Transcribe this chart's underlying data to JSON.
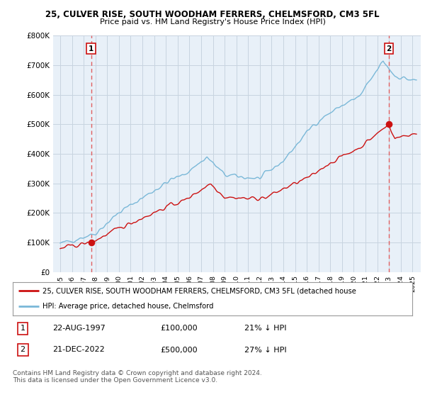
{
  "title1": "25, CULVER RISE, SOUTH WOODHAM FERRERS, CHELMSFORD, CM3 5FL",
  "title2": "Price paid vs. HM Land Registry's House Price Index (HPI)",
  "ylabel_ticks": [
    "£0",
    "£100K",
    "£200K",
    "£300K",
    "£400K",
    "£500K",
    "£600K",
    "£700K",
    "£800K"
  ],
  "ylim": [
    0,
    800000
  ],
  "purchase1_date": 1997.64,
  "purchase1_price": 100000,
  "purchase2_date": 2022.97,
  "purchase2_price": 500000,
  "legend_line1": "25, CULVER RISE, SOUTH WOODHAM FERRERS, CHELMSFORD, CM3 5FL (detached house",
  "legend_line2": "HPI: Average price, detached house, Chelmsford",
  "table_row1": [
    "1",
    "22-AUG-1997",
    "£100,000",
    "21% ↓ HPI"
  ],
  "table_row2": [
    "2",
    "21-DEC-2022",
    "£500,000",
    "27% ↓ HPI"
  ],
  "footer": "Contains HM Land Registry data © Crown copyright and database right 2024.\nThis data is licensed under the Open Government Licence v3.0.",
  "line_color_hpi": "#7ab8d8",
  "line_color_price": "#cc1111",
  "dashed_color": "#e06060",
  "plot_bg": "#e8f0f8",
  "grid_color": "#c8d4e0",
  "box_edge_color": "#cc1111"
}
